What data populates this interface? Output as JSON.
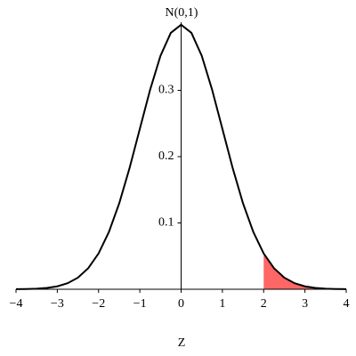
{
  "chart_data": {
    "type": "line",
    "xlabel": "Z",
    "ylabel": "N(0,1)",
    "xlim": [
      -4,
      4
    ],
    "ylim": [
      0,
      0.4
    ],
    "xticks": [
      {
        "value": -4,
        "label": "−4"
      },
      {
        "value": -3,
        "label": "−3"
      },
      {
        "value": -2,
        "label": "−2"
      },
      {
        "value": -1,
        "label": "−1"
      },
      0,
      1,
      2,
      3,
      4
    ],
    "yticks": [
      0.1,
      0.2,
      0.3
    ],
    "series": [
      {
        "color": "#000000",
        "fill": false,
        "x": [
          -4,
          -3.75,
          -3.5,
          -3.25,
          -3,
          -2.75,
          -2.5,
          -2.25,
          -2,
          -1.75,
          -1.5,
          -1.25,
          -1,
          -0.75,
          -0.5,
          -0.25,
          0,
          0.25,
          0.5,
          0.75,
          1,
          1.25,
          1.5,
          1.75,
          2,
          2.25,
          2.5,
          2.75,
          3,
          3.25,
          3.5,
          3.75,
          4
        ],
        "values": [
          0.0001,
          0.0004,
          0.0009,
          0.002,
          0.0044,
          0.0091,
          0.0175,
          0.0317,
          0.054,
          0.0863,
          0.1295,
          0.1826,
          0.242,
          0.3011,
          0.3521,
          0.3867,
          0.3989,
          0.3867,
          0.3521,
          0.3011,
          0.242,
          0.1826,
          0.1295,
          0.0863,
          0.054,
          0.0317,
          0.0175,
          0.0091,
          0.0044,
          0.002,
          0.0009,
          0.0004,
          0.0001
        ]
      },
      {
        "color": "#ff6666",
        "fill": true,
        "x": [
          2,
          2.25,
          2.5,
          2.75,
          3,
          3.25,
          3.5,
          3.75,
          4
        ],
        "values": [
          0.054,
          0.0317,
          0.0175,
          0.0091,
          0.0044,
          0.002,
          0.0009,
          0.0004,
          0.0001
        ]
      }
    ]
  }
}
